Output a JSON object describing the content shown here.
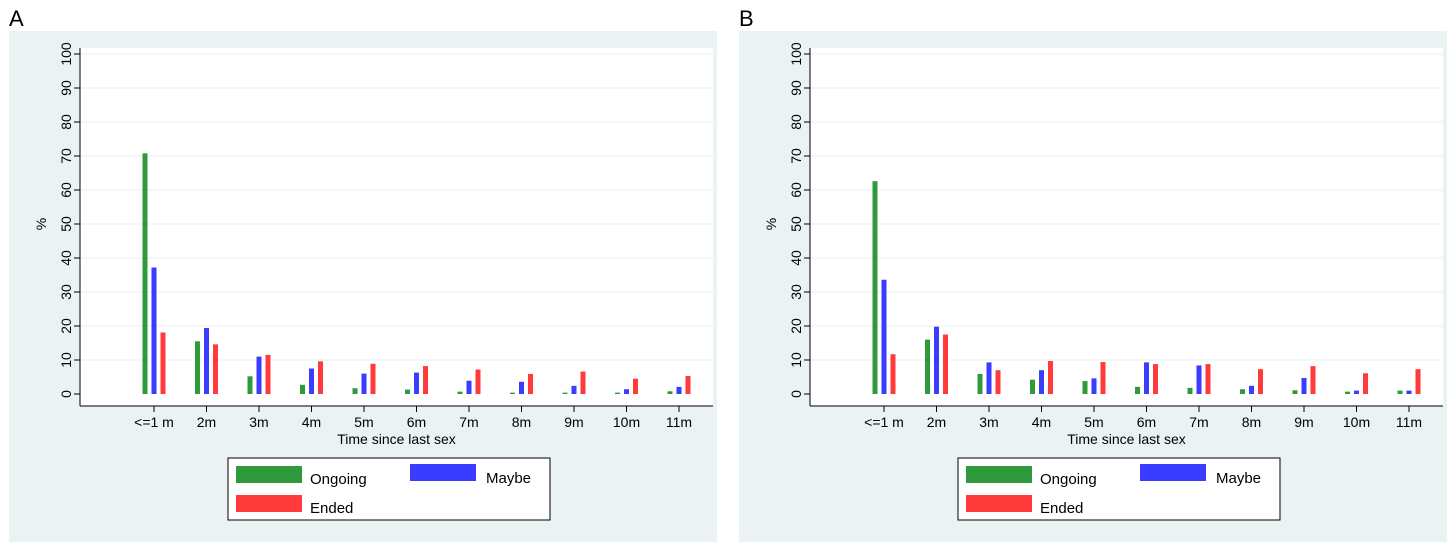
{
  "colors": {
    "ongoing": "#2e9a3c",
    "maybe": "#3a3dff",
    "ended": "#ff3a3a",
    "panel_bg": "#eaf2f3",
    "plot_bg": "#ffffff",
    "grid": "#e6eff0"
  },
  "chart_data": [
    {
      "panel_label": "A",
      "type": "bar",
      "ylabel": "%",
      "xlabel": "Time since last sex",
      "ylim": [
        0,
        100
      ],
      "yticks": [
        "0",
        "10",
        "20",
        "30",
        "40",
        "50",
        "60",
        "70",
        "80",
        "90",
        "100"
      ],
      "grid": true,
      "legend_position": "bottom",
      "categories": [
        "<=1 m",
        "2m",
        "3m",
        "4m",
        "5m",
        "6m",
        "7m",
        "8m",
        "9m",
        "10m",
        "11m"
      ],
      "series": [
        {
          "name": "Ongoing",
          "color": "#2e9a3c",
          "values": [
            70.8,
            15.5,
            5.2,
            2.7,
            1.7,
            1.3,
            0.7,
            0.4,
            0.4,
            0.4,
            0.8
          ]
        },
        {
          "name": "Maybe",
          "color": "#3a3dff",
          "values": [
            37.2,
            19.4,
            11.0,
            7.5,
            6.0,
            6.3,
            3.9,
            3.6,
            2.4,
            1.4,
            2.1
          ]
        },
        {
          "name": "Ended",
          "color": "#ff3a3a",
          "values": [
            18.1,
            14.6,
            11.5,
            9.6,
            8.9,
            8.2,
            7.2,
            5.9,
            6.6,
            4.5,
            5.3
          ]
        }
      ]
    },
    {
      "panel_label": "B",
      "type": "bar",
      "ylabel": "%",
      "xlabel": "Time since last sex",
      "ylim": [
        0,
        100
      ],
      "yticks": [
        "0",
        "10",
        "20",
        "30",
        "40",
        "50",
        "60",
        "70",
        "80",
        "90",
        "100"
      ],
      "grid": true,
      "legend_position": "bottom",
      "categories": [
        "<=1 m",
        "2m",
        "3m",
        "4m",
        "5m",
        "6m",
        "7m",
        "8m",
        "9m",
        "10m",
        "11m"
      ],
      "series": [
        {
          "name": "Ongoing",
          "color": "#2e9a3c",
          "values": [
            62.6,
            16.0,
            5.9,
            4.2,
            3.8,
            2.1,
            1.8,
            1.4,
            1.1,
            0.7,
            1.0
          ]
        },
        {
          "name": "Maybe",
          "color": "#3a3dff",
          "values": [
            33.6,
            19.8,
            9.3,
            7.0,
            4.6,
            9.3,
            8.4,
            2.4,
            4.7,
            1.0,
            1.0
          ]
        },
        {
          "name": "Ended",
          "color": "#ff3a3a",
          "values": [
            11.7,
            17.5,
            7.0,
            9.7,
            9.4,
            8.8,
            8.8,
            7.3,
            8.2,
            6.1,
            7.3
          ]
        }
      ]
    }
  ]
}
